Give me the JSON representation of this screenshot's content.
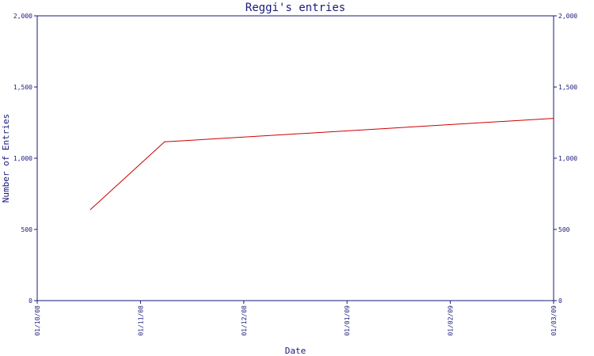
{
  "chart_data": {
    "type": "line",
    "title": "Reggi's entries",
    "xlabel": "Date",
    "ylabel": "Number of Entries",
    "x_ticks": [
      "01/10/08",
      "01/11/08",
      "01/12/08",
      "01/01/09",
      "01/02/09",
      "01/03/09"
    ],
    "y_ticks": [
      "0",
      "500",
      "1,000",
      "1,500",
      "2,000"
    ],
    "ylim": [
      0,
      2000
    ],
    "xlim": [
      "2008-10-01",
      "2009-03-01"
    ],
    "grid": false,
    "y_axis_mirrored_right": true,
    "series": [
      {
        "color": "#cc0000",
        "points": [
          {
            "x": "2008-10-17",
            "y": 640
          },
          {
            "x": "2008-11-08",
            "y": 1115
          },
          {
            "x": "2009-03-01",
            "y": 1280
          }
        ]
      }
    ]
  }
}
